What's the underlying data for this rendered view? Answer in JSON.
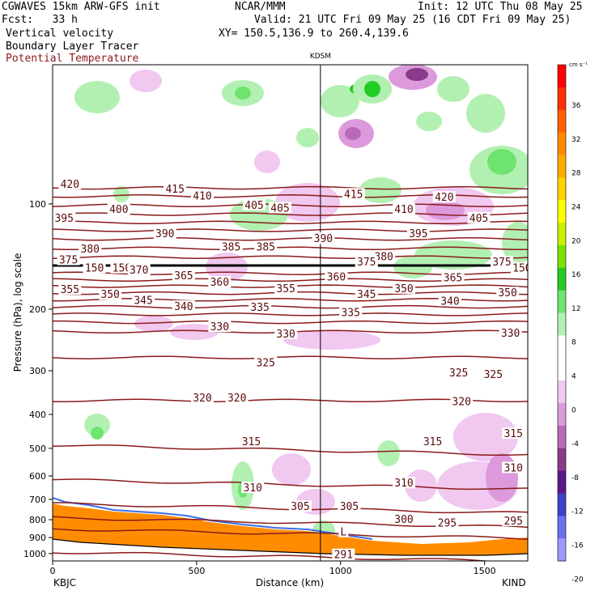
{
  "header": {
    "left_line1": "CGWAVES 15km ARW-GFS init",
    "left_line2": "Fcst:   33 h",
    "center_line1": "NCAR/MMM",
    "right_line1": "Init: 12 UTC Thu 08 May 25",
    "right_line2": "Valid: 21 UTC Fri 09 May 25 (16 CDT Fri 09 May 25)",
    "xy_line": "XY= 150.5,136.9 to 260.4,139.6",
    "field1": "Vertical velocity",
    "field2": "Boundary Layer Tracer",
    "field3": "Potential Temperature",
    "field3_color": "#8b1a1a"
  },
  "chart_data": {
    "type": "heatmap",
    "title": "Vertical velocity",
    "xlabel": "Distance (km)",
    "ylabel": "Pressure (hPa), log scale",
    "xlim": [
      0,
      1650
    ],
    "ylim": [
      1050,
      40
    ],
    "x_ticks": [
      0,
      500,
      1000,
      1500
    ],
    "y_ticks": [
      100,
      200,
      300,
      400,
      500,
      600,
      700,
      800,
      900,
      1000
    ],
    "y_scale": "log",
    "station_left": "KBJC",
    "station_right": "KIND",
    "station_mid": "KDSM",
    "station_mid_km": 930,
    "colorbar": {
      "unit": "cm s⁻¹",
      "labels": [
        "36",
        "32",
        "28",
        "24",
        "20",
        "16",
        "12",
        "8",
        "4",
        "0",
        "-4",
        "-8",
        "-12",
        "-16",
        "-20"
      ],
      "values": [
        36,
        32,
        28,
        24,
        20,
        16,
        12,
        8,
        4,
        0,
        -4,
        -8,
        -12,
        -16,
        -20
      ],
      "colors": [
        "#ff0000",
        "#ff3000",
        "#ff6000",
        "#ff8c00",
        "#ffaa00",
        "#ffd200",
        "#ffff00",
        "#c8f000",
        "#7ce000",
        "#22cc22",
        "#6ee46e",
        "#b2f0b2",
        "#ffffff",
        "#ffffff",
        "#f0c8f0",
        "#dc9adc",
        "#b86ab8",
        "#8a3a8a",
        "#5a1a8a",
        "#4040c8",
        "#6e6ef0",
        "#9a9aff"
      ]
    },
    "isentropes": [
      {
        "theta": 420,
        "p": 90
      },
      {
        "theta": 415,
        "p": 95
      },
      {
        "theta": 410,
        "p": 101
      },
      {
        "theta": 405,
        "p": 107
      },
      {
        "theta": 400,
        "p": 113
      },
      {
        "theta": 395,
        "p": 119
      },
      {
        "theta": 390,
        "p": 126
      },
      {
        "theta": 385,
        "p": 134
      },
      {
        "theta": 380,
        "p": 142
      },
      {
        "theta": 375,
        "p": 150
      },
      {
        "theta": 370,
        "p": 158
      },
      {
        "theta": 365,
        "p": 165
      },
      {
        "theta": 360,
        "p": 172
      },
      {
        "theta": 355,
        "p": 180
      },
      {
        "theta": 350,
        "p": 188
      },
      {
        "theta": 345,
        "p": 197
      },
      {
        "theta": 340,
        "p": 207
      },
      {
        "theta": 335,
        "p": 218
      },
      {
        "theta": 330,
        "p": 232
      },
      {
        "theta": 325,
        "p": 275
      },
      {
        "theta": 320,
        "p": 365
      },
      {
        "theta": 315,
        "p": 490
      },
      {
        "theta": 310,
        "p": 615
      },
      {
        "theta": 305,
        "p": 720
      },
      {
        "theta": 300,
        "p": 790
      },
      {
        "theta": 295,
        "p": 850
      },
      {
        "theta": 291,
        "p": 990
      }
    ],
    "contour_labels": [
      {
        "text": "420",
        "km": 60,
        "p": 88
      },
      {
        "text": "415",
        "km": 425,
        "p": 91
      },
      {
        "text": "410",
        "km": 520,
        "p": 95
      },
      {
        "text": "405",
        "km": 700,
        "p": 101
      },
      {
        "text": "405",
        "km": 790,
        "p": 103
      },
      {
        "text": "415",
        "km": 1045,
        "p": 94
      },
      {
        "text": "410",
        "km": 1220,
        "p": 104
      },
      {
        "text": "420",
        "km": 1360,
        "p": 96
      },
      {
        "text": "405",
        "km": 1480,
        "p": 110
      },
      {
        "text": "400",
        "km": 230,
        "p": 104
      },
      {
        "text": "395",
        "km": 40,
        "p": 110
      },
      {
        "text": "390",
        "km": 390,
        "p": 122
      },
      {
        "text": "395",
        "km": 1270,
        "p": 122
      },
      {
        "text": "385",
        "km": 620,
        "p": 133
      },
      {
        "text": "385",
        "km": 740,
        "p": 133
      },
      {
        "text": "390",
        "km": 940,
        "p": 126
      },
      {
        "text": "380",
        "km": 130,
        "p": 135
      },
      {
        "text": "380",
        "km": 1150,
        "p": 142
      },
      {
        "text": "375",
        "km": 55,
        "p": 145
      },
      {
        "text": "375",
        "km": 1090,
        "p": 147
      },
      {
        "text": "375",
        "km": 1560,
        "p": 147
      },
      {
        "text": "150",
        "km": 145,
        "p": 153
      },
      {
        "text": "150",
        "km": 240,
        "p": 153
      },
      {
        "text": "150",
        "km": 1630,
        "p": 153
      },
      {
        "text": "370",
        "km": 300,
        "p": 155
      },
      {
        "text": "365",
        "km": 455,
        "p": 161
      },
      {
        "text": "360",
        "km": 580,
        "p": 168
      },
      {
        "text": "355",
        "km": 810,
        "p": 175
      },
      {
        "text": "360",
        "km": 985,
        "p": 162
      },
      {
        "text": "365",
        "km": 1390,
        "p": 163
      },
      {
        "text": "355",
        "km": 60,
        "p": 176
      },
      {
        "text": "350",
        "km": 200,
        "p": 182
      },
      {
        "text": "345",
        "km": 315,
        "p": 189
      },
      {
        "text": "340",
        "km": 455,
        "p": 197
      },
      {
        "text": "335",
        "km": 720,
        "p": 198
      },
      {
        "text": "345",
        "km": 1090,
        "p": 182
      },
      {
        "text": "350",
        "km": 1220,
        "p": 175
      },
      {
        "text": "340",
        "km": 1380,
        "p": 190
      },
      {
        "text": "350",
        "km": 1580,
        "p": 180
      },
      {
        "text": "335",
        "km": 1035,
        "p": 205
      },
      {
        "text": "330",
        "km": 580,
        "p": 225
      },
      {
        "text": "330",
        "km": 810,
        "p": 236
      },
      {
        "text": "330",
        "km": 1590,
        "p": 235
      },
      {
        "text": "325",
        "km": 740,
        "p": 285
      },
      {
        "text": "325",
        "km": 1410,
        "p": 305
      },
      {
        "text": "325",
        "km": 1530,
        "p": 308
      },
      {
        "text": "320",
        "km": 520,
        "p": 360
      },
      {
        "text": "320",
        "km": 640,
        "p": 360
      },
      {
        "text": "320",
        "km": 1420,
        "p": 368
      },
      {
        "text": "315",
        "km": 690,
        "p": 480
      },
      {
        "text": "315",
        "km": 1320,
        "p": 480
      },
      {
        "text": "315",
        "km": 1600,
        "p": 455
      },
      {
        "text": "310",
        "km": 695,
        "p": 650
      },
      {
        "text": "310",
        "km": 1220,
        "p": 630
      },
      {
        "text": "310",
        "km": 1600,
        "p": 570
      },
      {
        "text": "305",
        "km": 860,
        "p": 735
      },
      {
        "text": "305",
        "km": 1030,
        "p": 735
      },
      {
        "text": "300",
        "km": 1220,
        "p": 800
      },
      {
        "text": "295",
        "km": 1370,
        "p": 820
      },
      {
        "text": "295",
        "km": 1600,
        "p": 808
      },
      {
        "text": "L",
        "km": 1010,
        "p": 870
      },
      {
        "text": "291",
        "km": 1010,
        "p": 1010
      }
    ]
  }
}
